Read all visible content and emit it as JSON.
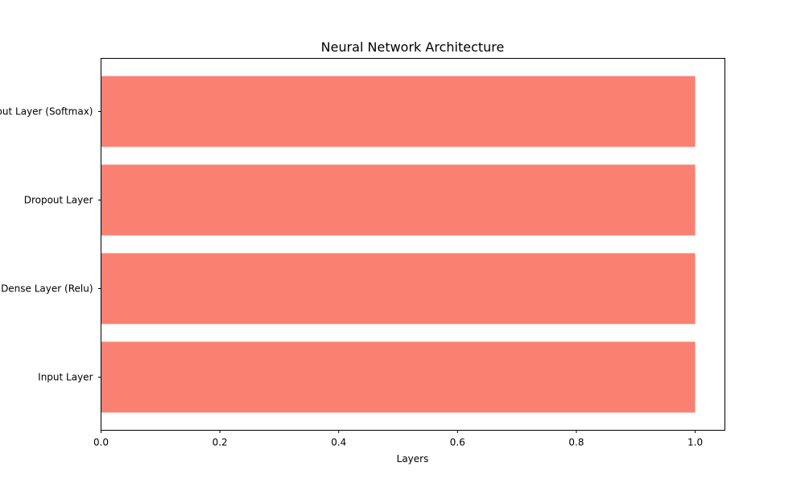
{
  "chart_data": {
    "type": "bar",
    "orientation": "horizontal",
    "title": "Neural Network Architecture",
    "xlabel": "Layers",
    "ylabel": "",
    "categories": [
      "Input Layer",
      "Dense Layer (Relu)",
      "Dropout Layer",
      "Output Layer (Softmax)"
    ],
    "values": [
      1,
      1,
      1,
      1
    ],
    "xlim": [
      0,
      1.05
    ],
    "xticks": [
      "0.0",
      "0.2",
      "0.4",
      "0.6",
      "0.8",
      "1.0"
    ],
    "grid": false,
    "bar_color": "#fa8072"
  }
}
